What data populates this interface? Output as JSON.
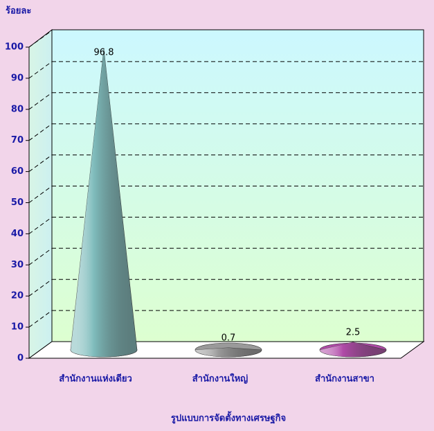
{
  "chart_data": {
    "type": "cone3d",
    "y_axis_label": "ร้อยละ",
    "x_axis_label": "รูปแบบการจัดตั้งทางเศรษฐกิจ",
    "categories": [
      "สำนักงานแห่งเดียว",
      "สำนักงานใหญ่",
      "สำนักงานสาขา"
    ],
    "values": [
      96.8,
      0.7,
      2.5
    ],
    "colors": [
      "#7fbcbc",
      "#9a9a9a",
      "#b04aa8"
    ],
    "ylim": [
      0,
      100
    ],
    "yticks": [
      0,
      10,
      20,
      30,
      40,
      50,
      60,
      70,
      80,
      90,
      100
    ],
    "grid": true
  }
}
